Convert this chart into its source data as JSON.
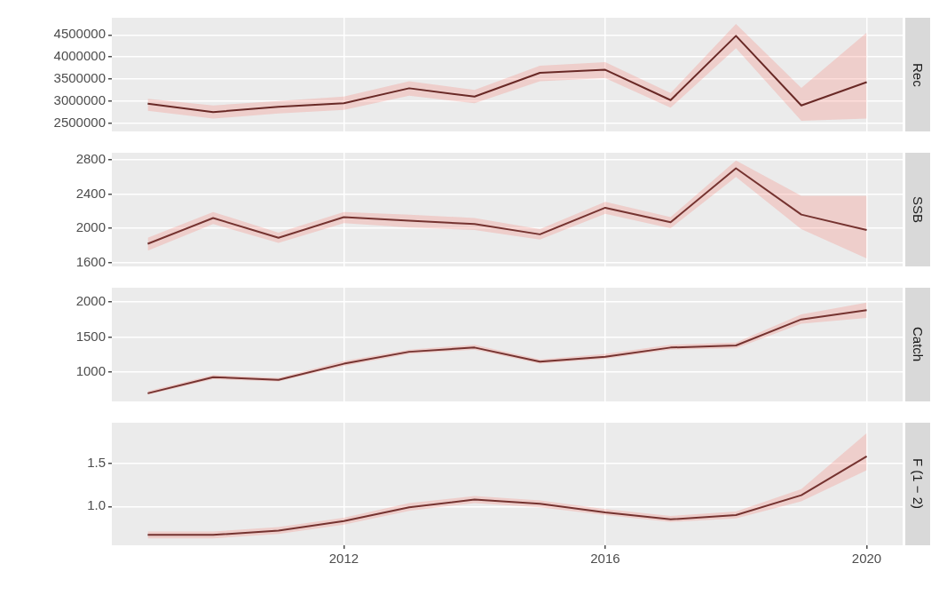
{
  "chart_data": [
    {
      "type": "line",
      "y2label": "Rec",
      "x": [
        2009,
        2010,
        2011,
        2012,
        2013,
        2014,
        2015,
        2016,
        2017,
        2018,
        2019,
        2020
      ],
      "series": [
        {
          "color": "#3a0f0f",
          "values": [
            2940000,
            2750000,
            2870000,
            2950000,
            3290000,
            3100000,
            3640000,
            3710000,
            3020000,
            4480000,
            2900000,
            3430000
          ],
          "lower": [
            2780000,
            2600000,
            2720000,
            2800000,
            3120000,
            2950000,
            3450000,
            3520000,
            2850000,
            4200000,
            2550000,
            2600000
          ],
          "upper": [
            3050000,
            2900000,
            3000000,
            3100000,
            3450000,
            3250000,
            3800000,
            3880000,
            3180000,
            4750000,
            3300000,
            4550000
          ]
        }
      ],
      "xlim": [
        2008.45,
        2020.55
      ],
      "xticks": [
        2012,
        2016,
        2020
      ],
      "ylim": [
        2310000,
        4890000
      ],
      "yticks": [
        2500000,
        3000000,
        3500000,
        4000000,
        4500000
      ],
      "grid": true,
      "tick_labels": "y"
    },
    {
      "type": "line",
      "y2label": "SSB",
      "x": [
        2009,
        2010,
        2011,
        2012,
        2013,
        2014,
        2015,
        2016,
        2017,
        2018,
        2019,
        2020
      ],
      "series": [
        {
          "color": "#4a1c1c",
          "values": [
            1820,
            2120,
            1890,
            2130,
            2090,
            2050,
            1930,
            2240,
            2070,
            2700,
            2160,
            1980
          ],
          "lower": [
            1740,
            2050,
            1830,
            2060,
            2010,
            1980,
            1870,
            2170,
            2000,
            2600,
            1990,
            1650
          ],
          "upper": [
            1890,
            2190,
            1950,
            2190,
            2160,
            2120,
            1990,
            2310,
            2130,
            2790,
            2380,
            2380
          ]
        }
      ],
      "xlim": [
        2008.45,
        2020.55
      ],
      "xticks": [
        2012,
        2016,
        2020
      ],
      "ylim": [
        1556,
        2881
      ],
      "yticks": [
        1600,
        2000,
        2400,
        2800
      ],
      "grid": true,
      "tick_labels": "y"
    },
    {
      "type": "line",
      "y2label": "Catch",
      "x": [
        2009,
        2010,
        2011,
        2012,
        2013,
        2014,
        2015,
        2016,
        2017,
        2018,
        2019,
        2020
      ],
      "series": [
        {
          "color": "#4a1c1c",
          "values": [
            700,
            930,
            890,
            1120,
            1290,
            1350,
            1150,
            1220,
            1350,
            1380,
            1750,
            1880
          ],
          "lower": [
            680,
            900,
            870,
            1090,
            1260,
            1320,
            1120,
            1190,
            1320,
            1340,
            1690,
            1770
          ],
          "upper": [
            730,
            960,
            920,
            1160,
            1320,
            1390,
            1180,
            1260,
            1390,
            1420,
            1820,
            1990
          ]
        }
      ],
      "xlim": [
        2008.45,
        2020.55
      ],
      "xticks": [
        2012,
        2016,
        2020
      ],
      "ylim": [
        585,
        2200
      ],
      "yticks": [
        1000,
        1500,
        2000
      ],
      "grid": true,
      "tick_labels": "y"
    },
    {
      "type": "line",
      "y2label": "F (1 − 2)",
      "x": [
        2009,
        2010,
        2011,
        2012,
        2013,
        2014,
        2015,
        2016,
        2017,
        2018,
        2019,
        2020
      ],
      "series": [
        {
          "color": "#4a1c1c",
          "values": [
            0.67,
            0.67,
            0.72,
            0.83,
            0.99,
            1.08,
            1.03,
            0.93,
            0.85,
            0.9,
            1.13,
            1.58
          ],
          "lower": [
            0.63,
            0.63,
            0.68,
            0.79,
            0.95,
            1.04,
            0.99,
            0.9,
            0.82,
            0.86,
            1.06,
            1.42
          ],
          "upper": [
            0.71,
            0.71,
            0.76,
            0.87,
            1.04,
            1.12,
            1.07,
            0.97,
            0.89,
            0.94,
            1.2,
            1.85
          ]
        }
      ],
      "xlim": [
        2008.45,
        2020.55
      ],
      "xticks": [
        2012,
        2016,
        2020
      ],
      "ylim": [
        0.55,
        1.97
      ],
      "yticks": [
        {
          "value": 1,
          "label": "1.0"
        },
        1.5
      ],
      "grid": true
    }
  ]
}
